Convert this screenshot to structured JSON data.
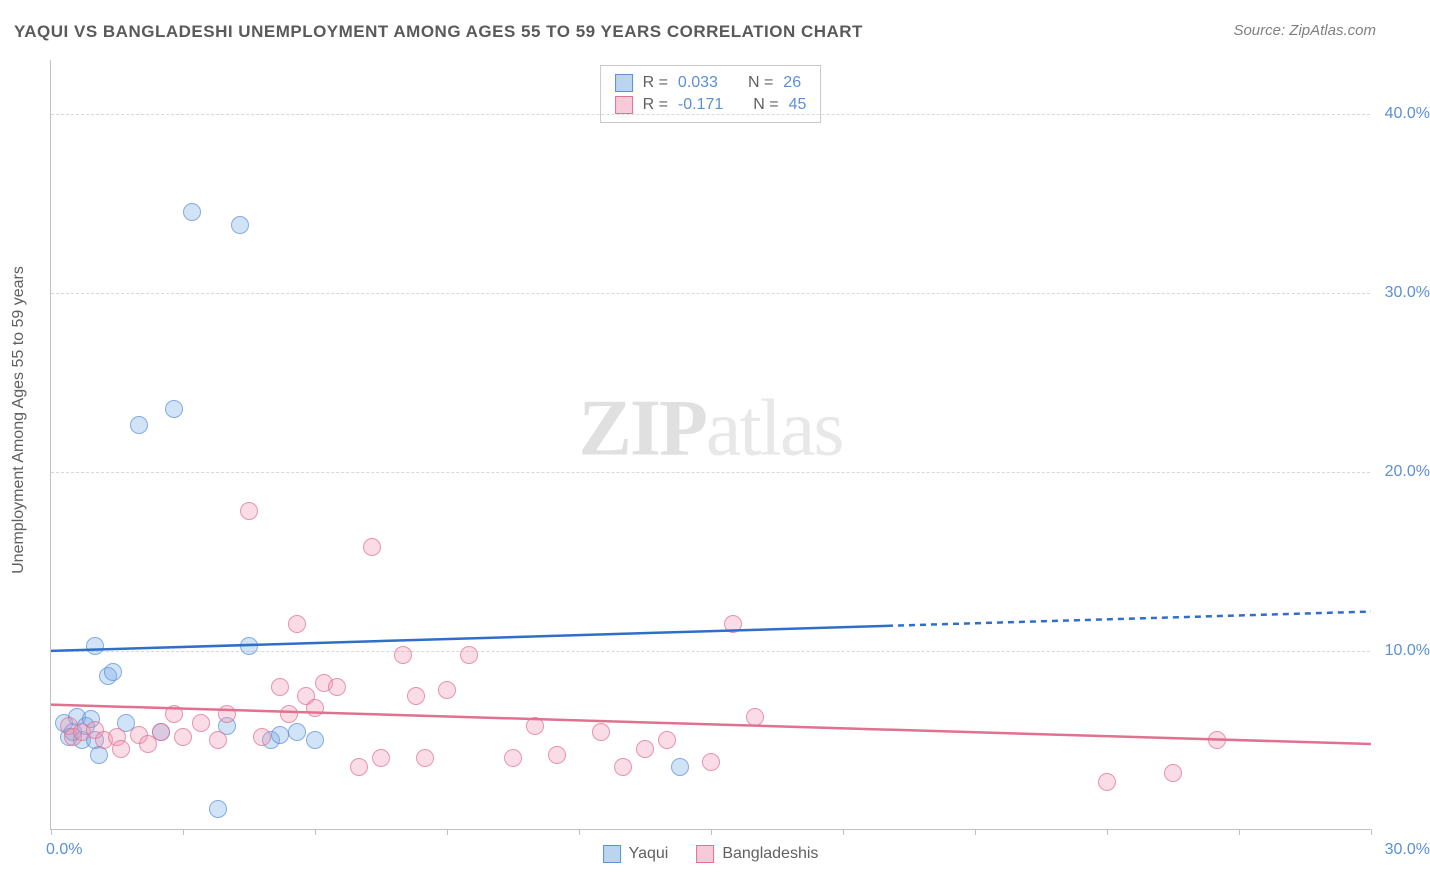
{
  "title": "YAQUI VS BANGLADESHI UNEMPLOYMENT AMONG AGES 55 TO 59 YEARS CORRELATION CHART",
  "source": "Source: ZipAtlas.com",
  "y_axis_label": "Unemployment Among Ages 55 to 59 years",
  "watermark_zip": "ZIP",
  "watermark_atlas": "atlas",
  "chart": {
    "type": "scatter",
    "xlim": [
      0,
      30
    ],
    "ylim": [
      0,
      43
    ],
    "y_gridlines": [
      10,
      20,
      30,
      40
    ],
    "y_tick_labels": [
      "10.0%",
      "20.0%",
      "30.0%",
      "40.0%"
    ],
    "x_ticks": [
      0,
      3,
      6,
      9,
      12,
      15,
      18,
      21,
      24,
      27,
      30
    ],
    "x_min_label": "0.0%",
    "x_max_label": "30.0%",
    "background_color": "#ffffff",
    "grid_color": "#d8d8d8",
    "series": [
      {
        "name": "Yaqui",
        "color_fill": "rgba(120,170,230,0.45)",
        "color_stroke": "#5b8fd6",
        "R": "0.033",
        "N": "26",
        "trend": {
          "x1": 0,
          "y1": 10.0,
          "x2": 19,
          "y2": 11.4,
          "x2_dash": 30,
          "y2_dash": 12.2,
          "color": "#2f6fc9",
          "width": 2.5
        },
        "points": [
          [
            0.3,
            6.0
          ],
          [
            0.4,
            5.2
          ],
          [
            0.5,
            5.5
          ],
          [
            0.6,
            6.3
          ],
          [
            0.7,
            5.0
          ],
          [
            0.8,
            5.8
          ],
          [
            0.9,
            6.2
          ],
          [
            1.0,
            5.0
          ],
          [
            1.0,
            10.3
          ],
          [
            1.1,
            4.2
          ],
          [
            1.3,
            8.6
          ],
          [
            1.4,
            8.8
          ],
          [
            1.7,
            6.0
          ],
          [
            2.0,
            22.6
          ],
          [
            2.5,
            5.5
          ],
          [
            2.8,
            23.5
          ],
          [
            3.2,
            34.5
          ],
          [
            3.8,
            1.2
          ],
          [
            4.0,
            5.8
          ],
          [
            4.3,
            33.8
          ],
          [
            4.5,
            10.3
          ],
          [
            5.0,
            5.0
          ],
          [
            5.2,
            5.3
          ],
          [
            5.6,
            5.5
          ],
          [
            6.0,
            5.0
          ],
          [
            14.3,
            3.5
          ]
        ]
      },
      {
        "name": "Bangladeshis",
        "color_fill": "rgba(240,150,180,0.45)",
        "color_stroke": "#e0718f",
        "R": "-0.171",
        "N": "45",
        "trend": {
          "x1": 0,
          "y1": 7.0,
          "x2": 30,
          "y2": 4.8,
          "color": "#e0718f",
          "width": 2.5
        },
        "points": [
          [
            0.4,
            5.8
          ],
          [
            0.5,
            5.2
          ],
          [
            0.7,
            5.5
          ],
          [
            1.0,
            5.6
          ],
          [
            1.2,
            5.0
          ],
          [
            1.5,
            5.2
          ],
          [
            1.6,
            4.5
          ],
          [
            2.0,
            5.3
          ],
          [
            2.2,
            4.8
          ],
          [
            2.5,
            5.5
          ],
          [
            2.8,
            6.5
          ],
          [
            3.0,
            5.2
          ],
          [
            3.4,
            6.0
          ],
          [
            3.8,
            5.0
          ],
          [
            4.0,
            6.5
          ],
          [
            4.5,
            17.8
          ],
          [
            4.8,
            5.2
          ],
          [
            5.2,
            8.0
          ],
          [
            5.4,
            6.5
          ],
          [
            5.6,
            11.5
          ],
          [
            5.8,
            7.5
          ],
          [
            6.0,
            6.8
          ],
          [
            6.2,
            8.2
          ],
          [
            6.5,
            8.0
          ],
          [
            7.0,
            3.5
          ],
          [
            7.3,
            15.8
          ],
          [
            7.5,
            4.0
          ],
          [
            8.0,
            9.8
          ],
          [
            8.3,
            7.5
          ],
          [
            8.5,
            4.0
          ],
          [
            9.0,
            7.8
          ],
          [
            9.5,
            9.8
          ],
          [
            10.5,
            4.0
          ],
          [
            11.0,
            5.8
          ],
          [
            11.5,
            4.2
          ],
          [
            12.5,
            5.5
          ],
          [
            13.0,
            3.5
          ],
          [
            13.5,
            4.5
          ],
          [
            14.0,
            5.0
          ],
          [
            15.0,
            3.8
          ],
          [
            15.5,
            11.5
          ],
          [
            16.0,
            6.3
          ],
          [
            24.0,
            2.7
          ],
          [
            25.5,
            3.2
          ],
          [
            26.5,
            5.0
          ]
        ]
      }
    ]
  },
  "legend_stats_prefix_R": "R =",
  "legend_stats_prefix_N": "N ="
}
